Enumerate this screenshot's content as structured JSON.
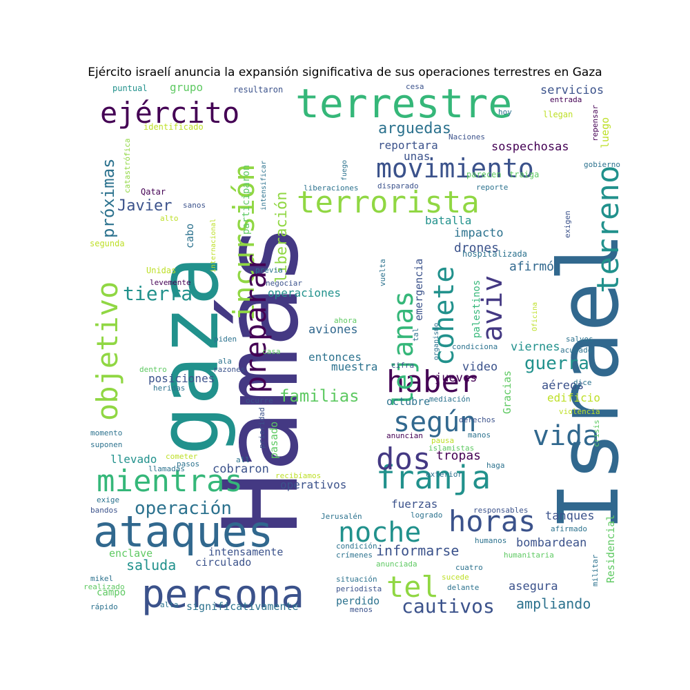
{
  "title": "Ejército israelí anuncia la expansión significativa de sus operaciones terrestres en Gaza",
  "words": [
    {
      "text": "Hamás",
      "color": "#443983"
    },
    {
      "text": "Israel",
      "color": "#31688e"
    },
    {
      "text": "gaza",
      "color": "#21918c"
    },
    {
      "text": "terrestre",
      "color": "#35b779"
    },
    {
      "text": "ataques",
      "color": "#31688e"
    },
    {
      "text": "persona",
      "color": "#3b528b"
    },
    {
      "text": "ejército",
      "color": "#440154"
    },
    {
      "text": "movimiento",
      "color": "#3b528b"
    },
    {
      "text": "terrorista",
      "color": "#90d743"
    },
    {
      "text": "terreno",
      "color": "#21918c"
    },
    {
      "text": "incursión",
      "color": "#90d743"
    },
    {
      "text": "mientras",
      "color": "#35b779"
    },
    {
      "text": "preparar",
      "color": "#440154"
    },
    {
      "text": "objetivo",
      "color": "#90d743"
    },
    {
      "text": "haber",
      "color": "#440154"
    },
    {
      "text": "según",
      "color": "#31688e"
    },
    {
      "text": "vida",
      "color": "#31688e"
    },
    {
      "text": "franja",
      "color": "#21918c"
    },
    {
      "text": "dos",
      "color": "#443983"
    },
    {
      "text": "noche",
      "color": "#21918c"
    },
    {
      "text": "horas",
      "color": "#3b528b"
    },
    {
      "text": "tel",
      "color": "#90d743"
    },
    {
      "text": "aviv",
      "color": "#443983"
    },
    {
      "text": "cohete",
      "color": "#21918c"
    },
    {
      "text": "lejanas",
      "color": "#35b779"
    },
    {
      "text": "operación",
      "color": "#2c728e"
    },
    {
      "text": "cautivos",
      "color": "#3b528b"
    },
    {
      "text": "próximas",
      "color": "#2c728e"
    },
    {
      "text": "liberación",
      "color": "#90d743"
    },
    {
      "text": "tierra",
      "color": "#21918c"
    },
    {
      "text": "familias",
      "color": "#5ec962"
    },
    {
      "text": "guerra",
      "color": "#21918c"
    },
    {
      "text": "arguedas",
      "color": "#2c728e"
    },
    {
      "text": "Javier",
      "color": "#3b528b"
    },
    {
      "text": "informarse",
      "color": "#3b528b"
    },
    {
      "text": "ampliando",
      "color": "#2c728e"
    },
    {
      "text": "batalla",
      "color": "#21918c"
    },
    {
      "text": "saluda",
      "color": "#21918c"
    },
    {
      "text": "drones",
      "color": "#3b528b"
    },
    {
      "text": "afirmó",
      "color": "#31688e"
    },
    {
      "text": "reportara",
      "color": "#3b528b"
    },
    {
      "text": "sospechosas",
      "color": "#440154"
    },
    {
      "text": "servicios",
      "color": "#3b528b"
    },
    {
      "text": "grupo",
      "color": "#5ec962"
    },
    {
      "text": "unas",
      "color": "#3b528b"
    },
    {
      "text": "luego",
      "color": "#bddf26"
    },
    {
      "text": "impacto",
      "color": "#2c728e"
    },
    {
      "text": "participaron",
      "color": "#5ec962"
    },
    {
      "text": "cabo",
      "color": "#2c728e"
    },
    {
      "text": "emergencia",
      "color": "#3b528b"
    },
    {
      "text": "viernes",
      "color": "#21918c"
    },
    {
      "text": "aviones",
      "color": "#31688e"
    },
    {
      "text": "operaciones",
      "color": "#21918c"
    },
    {
      "text": "entonces",
      "color": "#2c728e"
    },
    {
      "text": "muestra",
      "color": "#2c728e"
    },
    {
      "text": "jueves",
      "color": "#440154"
    },
    {
      "text": "video",
      "color": "#3b528b"
    },
    {
      "text": "aéreos",
      "color": "#3b528b"
    },
    {
      "text": "edificio",
      "color": "#bddf26"
    },
    {
      "text": "posiciones",
      "color": "#3b528b"
    },
    {
      "text": "octubre",
      "color": "#2c728e"
    },
    {
      "text": "Gracias",
      "color": "#5ec962"
    },
    {
      "text": "palestinos",
      "color": "#35b779"
    },
    {
      "text": "pasado",
      "color": "#5ec962"
    },
    {
      "text": "tropas",
      "color": "#440154"
    },
    {
      "text": "llevado",
      "color": "#21918c"
    },
    {
      "text": "cobraron",
      "color": "#3b528b"
    },
    {
      "text": "operativos",
      "color": "#3b528b"
    },
    {
      "text": "fuerzas",
      "color": "#3b528b"
    },
    {
      "text": "tanques",
      "color": "#3b528b"
    },
    {
      "text": "bombardean",
      "color": "#3b528b"
    },
    {
      "text": "enclave",
      "color": "#5ec962"
    },
    {
      "text": "intensamente",
      "color": "#3b528b"
    },
    {
      "text": "circulado",
      "color": "#3b528b"
    },
    {
      "text": "campo",
      "color": "#5ec962"
    },
    {
      "text": "asegura",
      "color": "#3b528b"
    },
    {
      "text": "perdido",
      "color": "#2c728e"
    },
    {
      "text": "significativamente",
      "color": "#2c728e"
    },
    {
      "text": "Residencial",
      "color": "#5ec962"
    },
    {
      "text": "puntual",
      "color": "#21918c"
    },
    {
      "text": "resultaron",
      "color": "#3b528b"
    },
    {
      "text": "cesa",
      "color": "#3b528b"
    },
    {
      "text": "identificado",
      "color": "#bddf26"
    },
    {
      "text": "catastrófica",
      "color": "#90d743"
    },
    {
      "text": "Naciones",
      "color": "#3b528b"
    },
    {
      "text": "hoy",
      "color": "#2c728e"
    },
    {
      "text": "llegan",
      "color": "#bddf26"
    },
    {
      "text": "entrada",
      "color": "#440154"
    },
    {
      "text": "repensar",
      "color": "#440154"
    },
    {
      "text": "gobierno",
      "color": "#2c728e"
    },
    {
      "text": "fuego",
      "color": "#2c728e"
    },
    {
      "text": "intensificar",
      "color": "#2c728e"
    },
    {
      "text": "parecen",
      "color": "#5ec962"
    },
    {
      "text": "traiga",
      "color": "#5ec962"
    },
    {
      "text": "liberaciones",
      "color": "#2c728e"
    },
    {
      "text": "disparado",
      "color": "#3b528b"
    },
    {
      "text": "reporte",
      "color": "#2c728e"
    },
    {
      "text": "Qatar",
      "color": "#440154"
    },
    {
      "text": "sanos",
      "color": "#3b528b"
    },
    {
      "text": "alto",
      "color": "#bddf26"
    },
    {
      "text": "internacional",
      "color": "#bddf26"
    },
    {
      "text": "exigen",
      "color": "#3b528b"
    },
    {
      "text": "segunda",
      "color": "#bddf26"
    },
    {
      "text": "hospitalizada",
      "color": "#2c728e"
    },
    {
      "text": "Unidas",
      "color": "#bddf26"
    },
    {
      "text": "previa",
      "color": "#2c728e"
    },
    {
      "text": "levemente",
      "color": "#440154"
    },
    {
      "text": "negociar",
      "color": "#3b528b"
    },
    {
      "text": "vuelta",
      "color": "#2c728e"
    },
    {
      "text": "Oficina",
      "color": "#bddf26"
    },
    {
      "text": "ahora",
      "color": "#5ec962"
    },
    {
      "text": "tal",
      "color": "#2c728e"
    },
    {
      "text": "organismo",
      "color": "#2c728e"
    },
    {
      "text": "condiciona",
      "color": "#2c728e"
    },
    {
      "text": "piden",
      "color": "#2c728e"
    },
    {
      "text": "casa",
      "color": "#5ec962"
    },
    {
      "text": "salvos",
      "color": "#2c728e"
    },
    {
      "text": "acusado",
      "color": "#2c728e"
    },
    {
      "text": "ala",
      "color": "#2c728e"
    },
    {
      "text": "razones",
      "color": "#3b528b"
    },
    {
      "text": "dentro",
      "color": "#5ec962"
    },
    {
      "text": "heridas",
      "color": "#2c728e"
    },
    {
      "text": "cifra",
      "color": "#3b528b"
    },
    {
      "text": "dice",
      "color": "#2c728e"
    },
    {
      "text": "ocurre",
      "color": "#3b528b"
    },
    {
      "text": "mediación",
      "color": "#2c728e"
    },
    {
      "text": "prioridad",
      "color": "#3b528b"
    },
    {
      "text": "derechos",
      "color": "#3b528b"
    },
    {
      "text": "violencia",
      "color": "#bddf26"
    },
    {
      "text": "momento",
      "color": "#2c728e"
    },
    {
      "text": "suponen",
      "color": "#2c728e"
    },
    {
      "text": "anuncian",
      "color": "#440154"
    },
    {
      "text": "pausa",
      "color": "#bddf26"
    },
    {
      "text": "manos",
      "color": "#2c728e"
    },
    {
      "text": "crisis",
      "color": "#5ec962"
    },
    {
      "text": "cometer",
      "color": "#bddf26"
    },
    {
      "text": "pasos",
      "color": "#2c728e"
    },
    {
      "text": "llamadas",
      "color": "#2c728e"
    },
    {
      "text": "all",
      "color": "#2c728e"
    },
    {
      "text": "islamistas",
      "color": "#5ec962"
    },
    {
      "text": "haga",
      "color": "#2c728e"
    },
    {
      "text": "recibíamos",
      "color": "#bddf26"
    },
    {
      "text": "exterior",
      "color": "#2c728e"
    },
    {
      "text": "exige",
      "color": "#2c728e"
    },
    {
      "text": "bandos",
      "color": "#3b528b"
    },
    {
      "text": "Jerusalén",
      "color": "#2c728e"
    },
    {
      "text": "logrado",
      "color": "#2c728e"
    },
    {
      "text": "responsables",
      "color": "#3b528b"
    },
    {
      "text": "humanos",
      "color": "#2c728e"
    },
    {
      "text": "afirmado",
      "color": "#2c728e"
    },
    {
      "text": "condición",
      "color": "#2c728e"
    },
    {
      "text": "crímenes",
      "color": "#2c728e"
    },
    {
      "text": "humanitaria",
      "color": "#5ec962"
    },
    {
      "text": "anunciada",
      "color": "#5ec962"
    },
    {
      "text": "mikel",
      "color": "#2c728e"
    },
    {
      "text": "realizado",
      "color": "#5ec962"
    },
    {
      "text": "situación",
      "color": "#2c728e"
    },
    {
      "text": "sucede",
      "color": "#bddf26"
    },
    {
      "text": "cuatro",
      "color": "#2c728e"
    },
    {
      "text": "delante",
      "color": "#2c728e"
    },
    {
      "text": "periodista",
      "color": "#3b528b"
    },
    {
      "text": "militar",
      "color": "#2c728e"
    },
    {
      "text": "rápido",
      "color": "#2c728e"
    },
    {
      "text": "alta",
      "color": "#2c728e"
    },
    {
      "text": "menos",
      "color": "#3b528b"
    }
  ]
}
